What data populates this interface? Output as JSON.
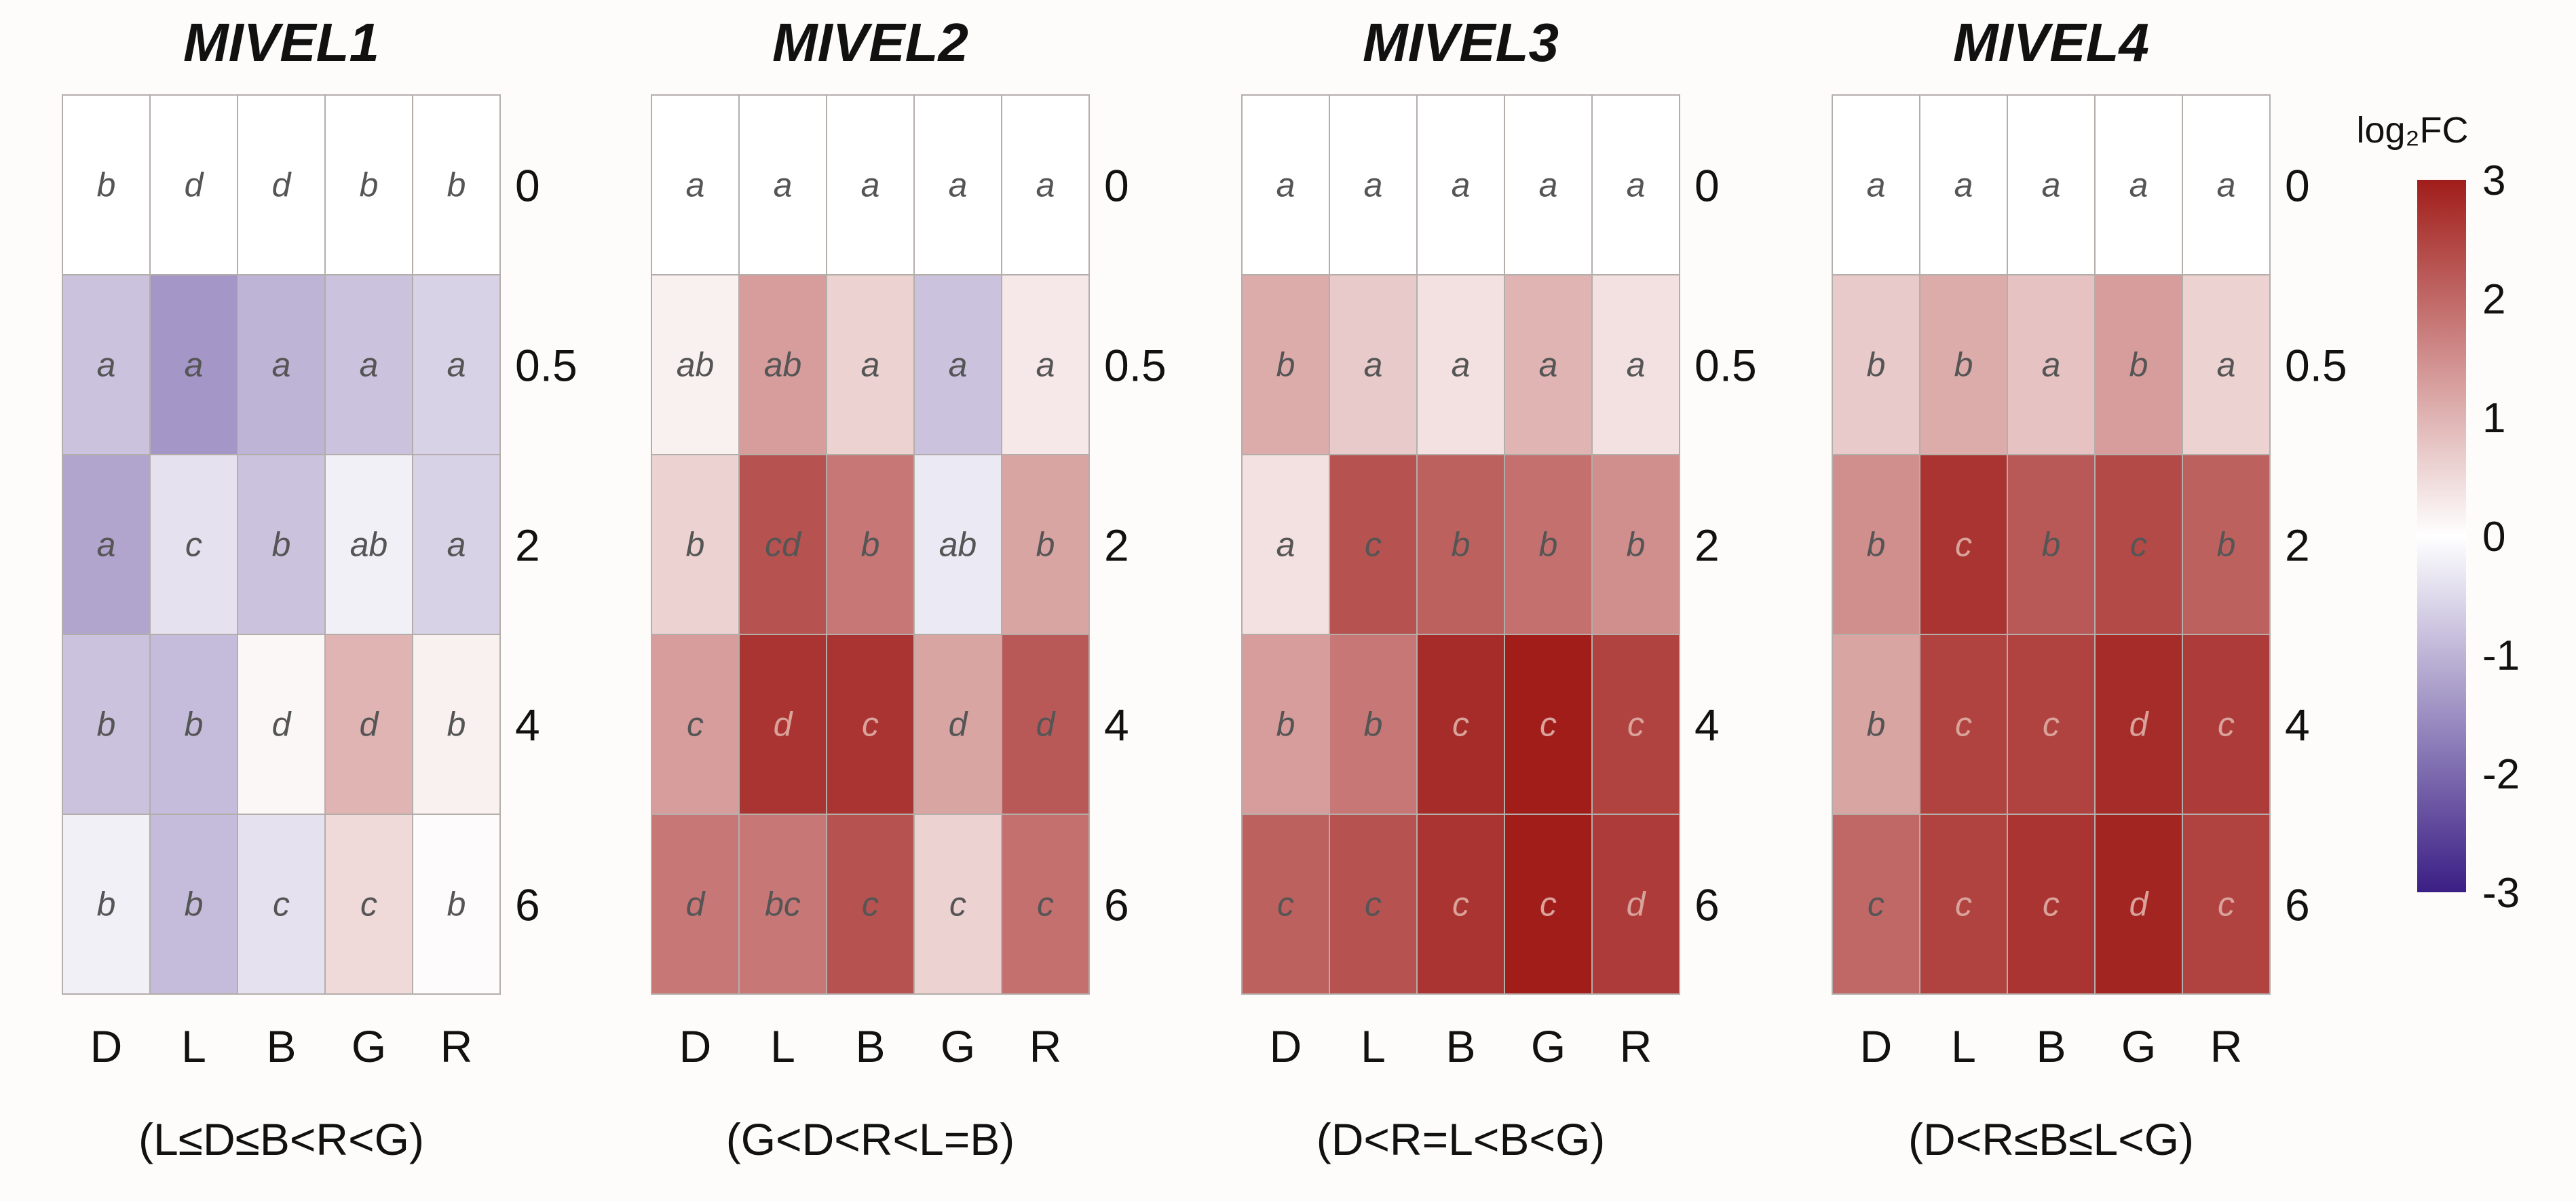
{
  "chart_data": {
    "type": "heatmap",
    "colorbar": {
      "title": "log₂FC",
      "min": -3,
      "max": 3,
      "ticks": [
        "3",
        "2",
        "1",
        "0",
        "-1",
        "-2",
        "-3"
      ],
      "colors": {
        "low": "#3b1f85",
        "mid": "#ffffff",
        "high": "#a01d1a"
      }
    },
    "panels": [
      {
        "title": "MIVEL1",
        "columns": [
          "D",
          "L",
          "B",
          "G",
          "R"
        ],
        "rows": [
          "0",
          "0.5",
          "2",
          "4",
          "6"
        ],
        "values": [
          [
            0,
            0,
            0,
            0,
            0
          ],
          [
            -0.8,
            -1.4,
            -1.0,
            -0.8,
            -0.6
          ],
          [
            -1.2,
            -0.4,
            -0.8,
            -0.2,
            -0.6
          ],
          [
            -0.8,
            -0.9,
            0.1,
            1.0,
            0.2
          ],
          [
            -0.2,
            -0.9,
            -0.4,
            0.5,
            0.05
          ]
        ],
        "letters": [
          [
            "b",
            "d",
            "d",
            "b",
            "b"
          ],
          [
            "a",
            "a",
            "a",
            "a",
            "a"
          ],
          [
            "a",
            "c",
            "b",
            "ab",
            "a"
          ],
          [
            "b",
            "b",
            "d",
            "d",
            "b"
          ],
          [
            "b",
            "b",
            "c",
            "c",
            "b"
          ]
        ],
        "ordering": "(L≤D≤B<R<G)"
      },
      {
        "title": "MIVEL2",
        "columns": [
          "D",
          "L",
          "B",
          "G",
          "R"
        ],
        "rows": [
          "0",
          "0.5",
          "2",
          "4",
          "6"
        ],
        "values": [
          [
            0,
            0,
            0,
            0,
            0
          ],
          [
            0.2,
            1.3,
            0.6,
            -0.8,
            0.3
          ],
          [
            0.6,
            2.3,
            1.8,
            -0.3,
            1.2
          ],
          [
            1.3,
            2.7,
            2.7,
            1.2,
            2.2
          ],
          [
            1.8,
            1.8,
            2.3,
            0.6,
            1.9
          ]
        ],
        "letters": [
          [
            "a",
            "a",
            "a",
            "a",
            "a"
          ],
          [
            "ab",
            "ab",
            "a",
            "a",
            "a"
          ],
          [
            "b",
            "cd",
            "b",
            "ab",
            "b"
          ],
          [
            "c",
            "d",
            "c",
            "d",
            "d"
          ],
          [
            "d",
            "bc",
            "c",
            "c",
            "c"
          ]
        ],
        "ordering": "(G<D<R<L=B)"
      },
      {
        "title": "MIVEL3",
        "columns": [
          "D",
          "L",
          "B",
          "G",
          "R"
        ],
        "rows": [
          "0",
          "0.5",
          "2",
          "4",
          "6"
        ],
        "values": [
          [
            0,
            0,
            0,
            0,
            0
          ],
          [
            1.1,
            0.7,
            0.4,
            1.0,
            0.4
          ],
          [
            0.4,
            2.3,
            2.1,
            1.9,
            1.5
          ],
          [
            1.3,
            1.8,
            2.8,
            3.0,
            2.5
          ],
          [
            2.1,
            2.3,
            2.7,
            3.0,
            2.6
          ]
        ],
        "letters": [
          [
            "a",
            "a",
            "a",
            "a",
            "a"
          ],
          [
            "b",
            "a",
            "a",
            "a",
            "a"
          ],
          [
            "a",
            "c",
            "b",
            "b",
            "b"
          ],
          [
            "b",
            "b",
            "c",
            "c",
            "c"
          ],
          [
            "c",
            "c",
            "c",
            "c",
            "d"
          ]
        ],
        "ordering": "(D<R=L<B<G)"
      },
      {
        "title": "MIVEL4",
        "columns": [
          "D",
          "L",
          "B",
          "G",
          "R"
        ],
        "rows": [
          "0",
          "0.5",
          "2",
          "4",
          "6"
        ],
        "values": [
          [
            0,
            0,
            0,
            0,
            0
          ],
          [
            0.7,
            1.1,
            0.8,
            1.3,
            0.6
          ],
          [
            1.5,
            2.7,
            2.2,
            2.4,
            2.1
          ],
          [
            1.2,
            2.5,
            2.5,
            2.8,
            2.6
          ],
          [
            2.0,
            2.5,
            2.7,
            2.9,
            2.5
          ]
        ],
        "letters": [
          [
            "a",
            "a",
            "a",
            "a",
            "a"
          ],
          [
            "b",
            "b",
            "a",
            "b",
            "a"
          ],
          [
            "b",
            "c",
            "b",
            "c",
            "b"
          ],
          [
            "b",
            "c",
            "c",
            "d",
            "c"
          ],
          [
            "c",
            "c",
            "c",
            "d",
            "c"
          ]
        ],
        "ordering": "(D<R≤B≤L<G)"
      }
    ]
  }
}
